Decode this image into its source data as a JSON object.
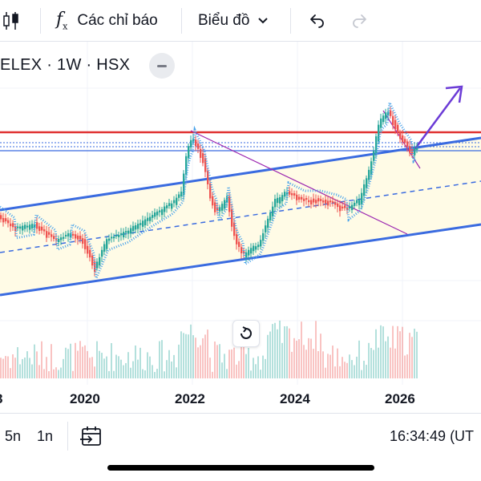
{
  "toolbar": {
    "indicators_label": "Các chỉ báo",
    "chart_type_label": "Biểu đồ",
    "icons": [
      "candles-icon",
      "fx-icon",
      "chevron-down-icon",
      "undo-icon",
      "redo-icon"
    ]
  },
  "legend": {
    "symbol_text": "ELEX · 1W · HSX"
  },
  "time_axis": {
    "labels": [
      "2020",
      "2022",
      "2024",
      "2026"
    ],
    "partial_label": "8"
  },
  "bottom": {
    "ranges": [
      "5n",
      "1n"
    ],
    "clock": "16:34:49 (UT"
  },
  "colors": {
    "accent_blue": "#2962ff",
    "resistance_red": "#e03131",
    "channel_blue": "#3a6be0",
    "trend_purple": "#9c27b0",
    "arrow_purple": "#6b3bd6",
    "candle_up": "#26a69a",
    "candle_down": "#ef5350",
    "channel_fill": "#fffbe6"
  }
}
